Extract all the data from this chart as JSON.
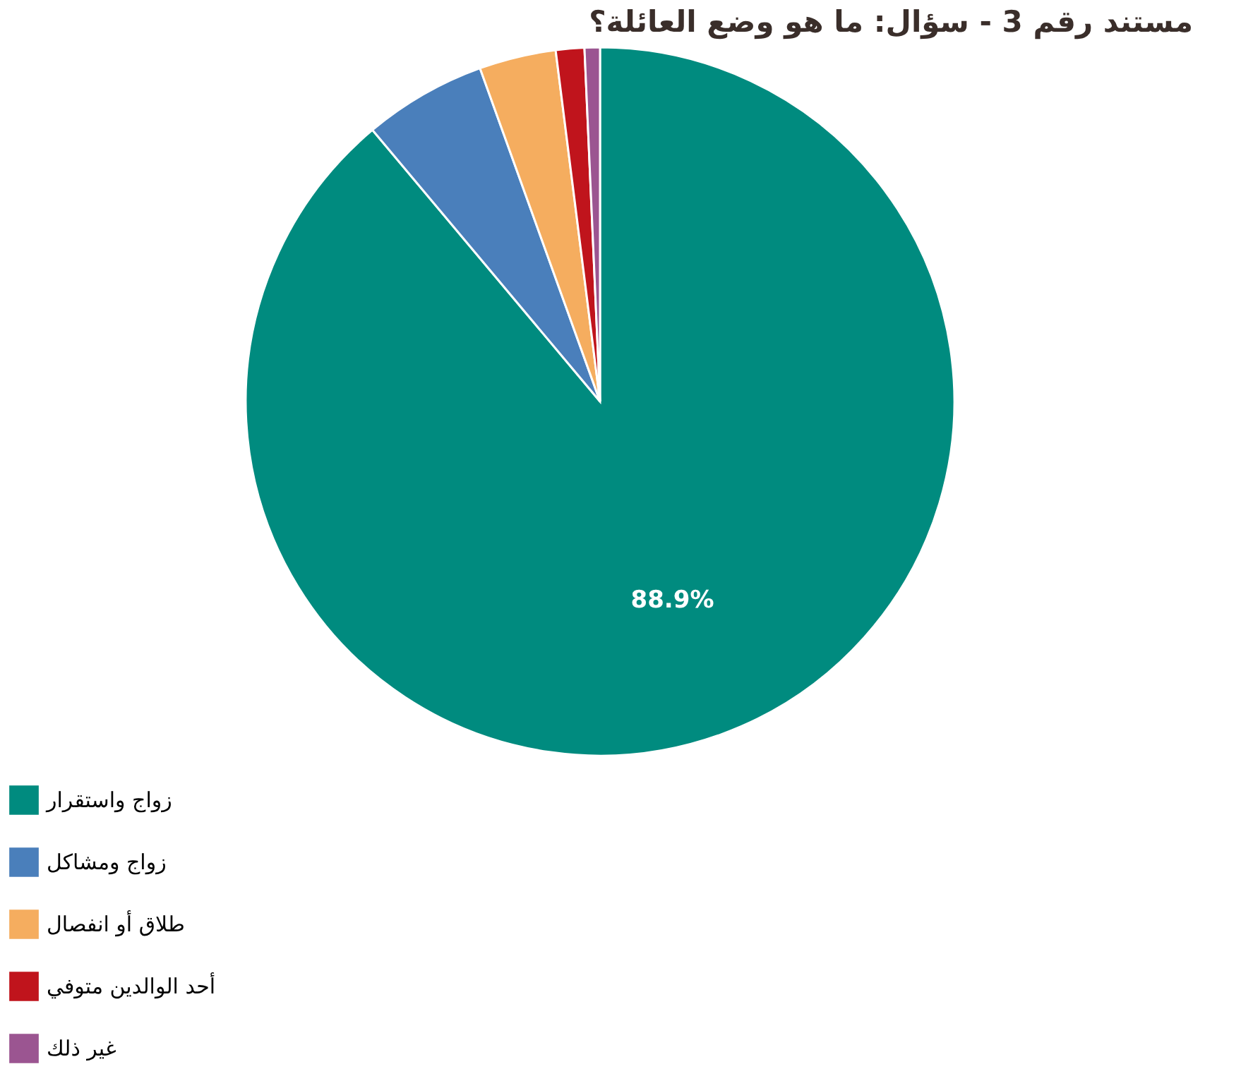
{
  "chart_data": {
    "type": "pie",
    "title": "مستند رقم 3 - سؤال: ما هو وضع العائلة؟",
    "categories": [
      "زواج واستقرار",
      "زواج ومشاكل",
      "طلاق أو انفصال",
      "أحد الوالدين متوفي",
      "غير ذلك"
    ],
    "values": [
      88.9,
      5.6,
      3.5,
      1.3,
      0.7
    ],
    "colors": [
      "#008b7f",
      "#4a7fbb",
      "#f5ad5f",
      "#c0141c",
      "#9b5591"
    ],
    "value_labels": [
      "88.9%",
      null,
      null,
      null,
      null
    ],
    "legend": "bottom"
  }
}
